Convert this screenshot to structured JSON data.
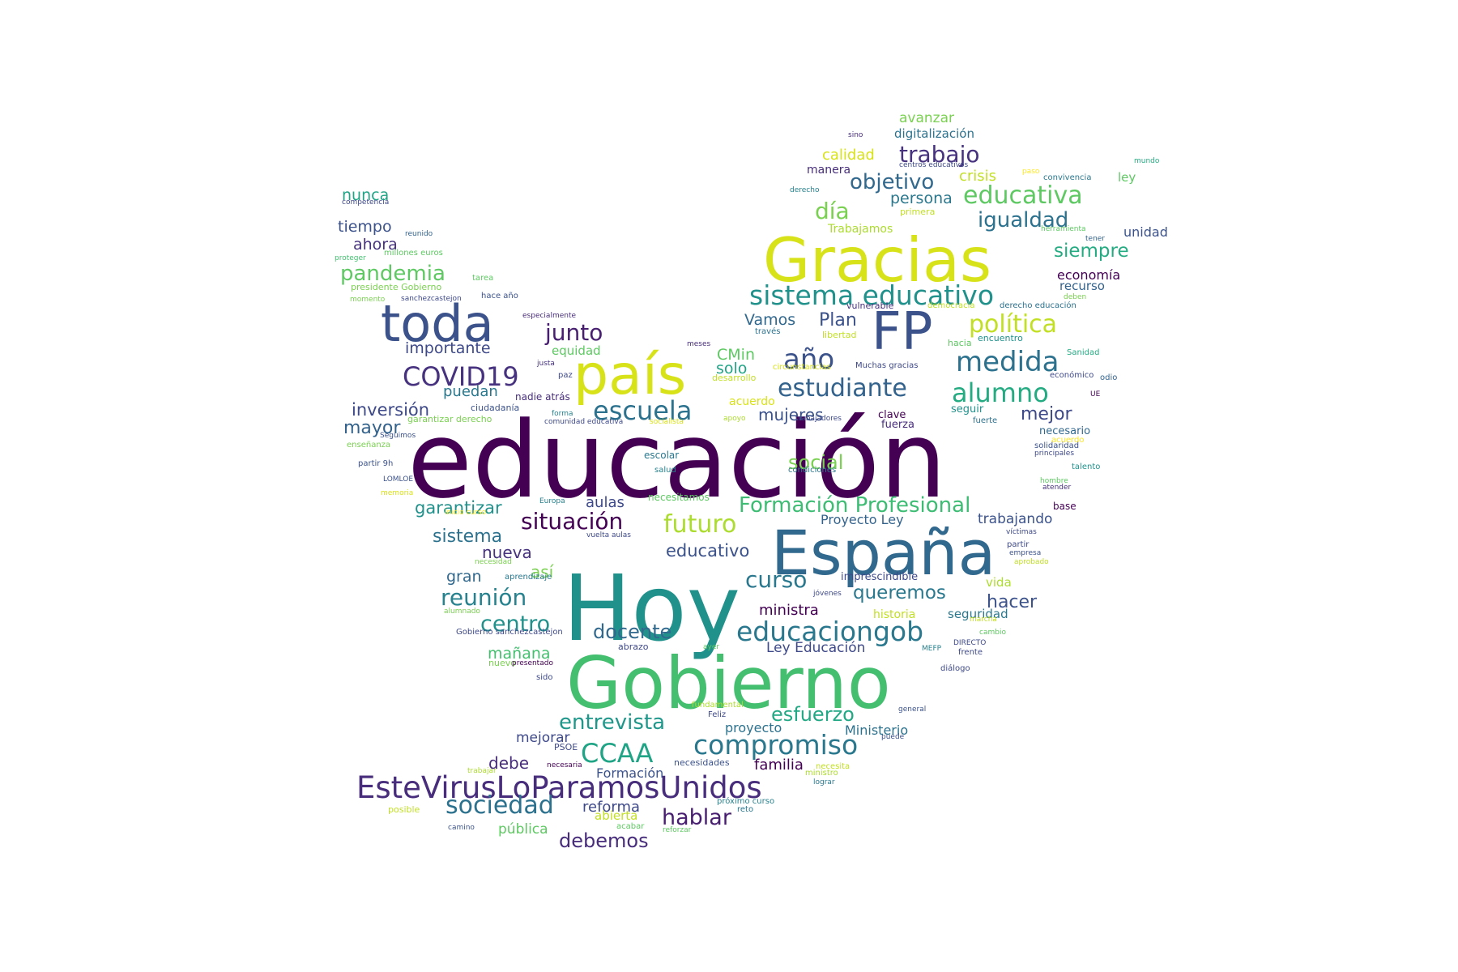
{
  "words": [
    {
      "text": "educación",
      "color": "#440154"
    },
    {
      "text": "Hoy",
      "color": "#21918c"
    },
    {
      "text": "Gobierno",
      "color": "#44bf70"
    },
    {
      "text": "España",
      "color": "#31688e"
    },
    {
      "text": "Gracias",
      "color": "#d8e219"
    },
    {
      "text": "país",
      "color": "#d8e219"
    },
    {
      "text": "FP",
      "color": "#3b528b"
    },
    {
      "text": "toda",
      "color": "#3b528b"
    },
    {
      "text": "EsteVirusLoParamosUnidos",
      "color": "#472d7b"
    },
    {
      "text": "sistema educativo",
      "color": "#21918c"
    },
    {
      "text": "compromiso",
      "color": "#2a788e"
    },
    {
      "text": "educaciongob",
      "color": "#2a788e"
    },
    {
      "text": "COVID19",
      "color": "#46327e"
    },
    {
      "text": "escuela",
      "color": "#2c728e"
    },
    {
      "text": "medida",
      "color": "#2c728e"
    },
    {
      "text": "alumno",
      "color": "#25ab82"
    },
    {
      "text": "estudiante",
      "color": "#33638d"
    },
    {
      "text": "año",
      "color": "#3b528b"
    },
    {
      "text": "política",
      "color": "#c2df23"
    },
    {
      "text": "educativa",
      "color": "#5ec962"
    },
    {
      "text": "futuro",
      "color": "#addc30"
    },
    {
      "text": "CCAA",
      "color": "#20a486"
    },
    {
      "text": "sociedad",
      "color": "#2c728e"
    },
    {
      "text": "Formación Profesional",
      "color": "#3dbc74"
    },
    {
      "text": "situación",
      "color": "#440154"
    },
    {
      "text": "reunión",
      "color": "#26828e"
    },
    {
      "text": "curso",
      "color": "#2a788e"
    },
    {
      "text": "junto",
      "color": "#481f70"
    },
    {
      "text": "trabajo",
      "color": "#46327e"
    },
    {
      "text": "igualdad",
      "color": "#2c728e"
    },
    {
      "text": "día",
      "color": "#7ad151"
    },
    {
      "text": "objetivo",
      "color": "#31688e"
    },
    {
      "text": "entrevista",
      "color": "#1f988b"
    },
    {
      "text": "esfuerzo",
      "color": "#22a884"
    },
    {
      "text": "hablar",
      "color": "#481f70"
    },
    {
      "text": "debemos",
      "color": "#472d7b"
    },
    {
      "text": "centro",
      "color": "#21918c"
    },
    {
      "text": "docente",
      "color": "#31688e"
    },
    {
      "text": "pandemia",
      "color": "#5ec962"
    },
    {
      "text": "siempre",
      "color": "#25ab82"
    },
    {
      "text": "queremos",
      "color": "#2a788e"
    },
    {
      "text": "hacer",
      "color": "#3b528b"
    },
    {
      "text": "inversión",
      "color": "#3e4989"
    },
    {
      "text": "mejor",
      "color": "#3e4989"
    },
    {
      "text": "social",
      "color": "#7ad151"
    },
    {
      "text": "importante",
      "color": "#3e4989"
    },
    {
      "text": "mujeres",
      "color": "#3b528b"
    },
    {
      "text": "Plan",
      "color": "#3b528b"
    },
    {
      "text": "Vamos",
      "color": "#31688e"
    },
    {
      "text": "CMin",
      "color": "#5ec962"
    },
    {
      "text": "mayor",
      "color": "#33638d"
    },
    {
      "text": "sistema",
      "color": "#2c728e"
    },
    {
      "text": "nueva",
      "color": "#46327e"
    },
    {
      "text": "garantizar",
      "color": "#21918c"
    },
    {
      "text": "educativo",
      "color": "#3b528b"
    },
    {
      "text": "ahora",
      "color": "#46327e"
    },
    {
      "text": "tiempo",
      "color": "#3b528b"
    },
    {
      "text": "nunca",
      "color": "#20a486"
    },
    {
      "text": "persona",
      "color": "#2a788e"
    },
    {
      "text": "crisis",
      "color": "#c2df23"
    },
    {
      "text": "calidad",
      "color": "#d8e219"
    },
    {
      "text": "avanzar",
      "color": "#7ad151"
    },
    {
      "text": "digitalización",
      "color": "#2c728e"
    },
    {
      "text": "unidad",
      "color": "#3b528b"
    },
    {
      "text": "economía",
      "color": "#440154"
    },
    {
      "text": "recurso",
      "color": "#33638d"
    },
    {
      "text": "manera",
      "color": "#472d7b"
    },
    {
      "text": "Trabajamos",
      "color": "#addc30"
    },
    {
      "text": "solo",
      "color": "#20a486"
    },
    {
      "text": "puedan",
      "color": "#2a788e"
    },
    {
      "text": "equidad",
      "color": "#5ec962"
    },
    {
      "text": "así",
      "color": "#7ad151"
    },
    {
      "text": "gran",
      "color": "#31688e"
    },
    {
      "text": "aulas",
      "color": "#3e4989"
    },
    {
      "text": "ministra",
      "color": "#440154"
    },
    {
      "text": "mañana",
      "color": "#44bf70"
    },
    {
      "text": "Ley Educación",
      "color": "#3e4989"
    },
    {
      "text": "debe",
      "color": "#472d7b"
    },
    {
      "text": "mejorar",
      "color": "#3e4989"
    },
    {
      "text": "familia",
      "color": "#440154"
    },
    {
      "text": "reforma",
      "color": "#3e4989"
    },
    {
      "text": "Formación",
      "color": "#3b528b"
    },
    {
      "text": "pública",
      "color": "#5ec962"
    },
    {
      "text": "abierta",
      "color": "#c2df23"
    },
    {
      "text": "proyecto",
      "color": "#2c728e"
    },
    {
      "text": "Ministerio",
      "color": "#2c728e"
    },
    {
      "text": "trabajando",
      "color": "#3b528b"
    },
    {
      "text": "Proyecto Ley",
      "color": "#33638d"
    },
    {
      "text": "vida",
      "color": "#addc30"
    },
    {
      "text": "seguridad",
      "color": "#2a788e"
    },
    {
      "text": "historia",
      "color": "#c2df23"
    },
    {
      "text": "acuerdo",
      "color": "#d8e219"
    },
    {
      "text": "clave",
      "color": "#440154"
    },
    {
      "text": "fuerza",
      "color": "#472d7b"
    },
    {
      "text": "seguir",
      "color": "#21918c"
    },
    {
      "text": "necesario",
      "color": "#31688e"
    },
    {
      "text": "base",
      "color": "#440154"
    },
    {
      "text": "imprescindible",
      "color": "#3e4989"
    },
    {
      "text": "necesitamos",
      "color": "#5ec962"
    },
    {
      "text": "escolar",
      "color": "#2a788e"
    },
    {
      "text": "nadie atrás",
      "color": "#472d7b"
    },
    {
      "text": "ley",
      "color": "#5ec962"
    },
    {
      "text": "mundo",
      "color": "#25ab82"
    },
    {
      "text": "paso",
      "color": "#fde725"
    },
    {
      "text": "convivencia",
      "color": "#2a788e"
    },
    {
      "text": "sino",
      "color": "#472d7b"
    },
    {
      "text": "centros educativos",
      "color": "#3e4989"
    },
    {
      "text": "derecho",
      "color": "#26828e"
    },
    {
      "text": "primera",
      "color": "#c2df23"
    },
    {
      "text": "herramienta",
      "color": "#5ec962"
    },
    {
      "text": "tener",
      "color": "#33638d"
    },
    {
      "text": "competencia",
      "color": "#3e4989"
    },
    {
      "text": "reunido",
      "color": "#33638d"
    },
    {
      "text": "millones euros",
      "color": "#5ec962"
    },
    {
      "text": "proteger",
      "color": "#44bf70"
    },
    {
      "text": "tarea",
      "color": "#5ec962"
    },
    {
      "text": "presidente Gobierno",
      "color": "#7ad151"
    },
    {
      "text": "hace año",
      "color": "#3b528b"
    },
    {
      "text": "sanchezcastejon",
      "color": "#3e4989"
    },
    {
      "text": "momento",
      "color": "#7ad151"
    },
    {
      "text": "especialmente",
      "color": "#472d7b"
    },
    {
      "text": "vulnerable",
      "color": "#46327e"
    },
    {
      "text": "democracia",
      "color": "#c2df23"
    },
    {
      "text": "derecho educación",
      "color": "#2c728e"
    },
    {
      "text": "deben",
      "color": "#7ad151"
    },
    {
      "text": "través",
      "color": "#2c728e"
    },
    {
      "text": "libertad",
      "color": "#c2df23"
    },
    {
      "text": "meses",
      "color": "#472d7b"
    },
    {
      "text": "hacia",
      "color": "#5ec962"
    },
    {
      "text": "encuentro",
      "color": "#21918c"
    },
    {
      "text": "justa",
      "color": "#46327e"
    },
    {
      "text": "circunstancias",
      "color": "#d8e219"
    },
    {
      "text": "Muchas gracias",
      "color": "#3e4989"
    },
    {
      "text": "Sanidad",
      "color": "#25ab82"
    },
    {
      "text": "paz",
      "color": "#3e4989"
    },
    {
      "text": "desarrollo",
      "color": "#c2df23"
    },
    {
      "text": "económico",
      "color": "#3e4989"
    },
    {
      "text": "odio",
      "color": "#33638d"
    },
    {
      "text": "UE",
      "color": "#440154"
    },
    {
      "text": "ciudadanía",
      "color": "#3b528b"
    },
    {
      "text": "forma",
      "color": "#26828e"
    },
    {
      "text": "trabajadores",
      "color": "#3e4989"
    },
    {
      "text": "fuerte",
      "color": "#2c728e"
    },
    {
      "text": "garantizar derecho",
      "color": "#7ad151"
    },
    {
      "text": "comunidad educativa",
      "color": "#3e4989"
    },
    {
      "text": "socialista",
      "color": "#d8e219"
    },
    {
      "text": "apoyo",
      "color": "#addc30"
    },
    {
      "text": "acuerdo ",
      "color": "#fde725"
    },
    {
      "text": "Seguimos",
      "color": "#3b528b"
    },
    {
      "text": "enseñanza",
      "color": "#7ad151"
    },
    {
      "text": "solidaridad",
      "color": "#3b528b"
    },
    {
      "text": "principales",
      "color": "#3e4989"
    },
    {
      "text": "partir 9h",
      "color": "#3b528b"
    },
    {
      "text": "salud",
      "color": "#26828e"
    },
    {
      "text": "condiciones",
      "color": "#2a788e"
    },
    {
      "text": "talento",
      "color": "#21918c"
    },
    {
      "text": "LOMLOE",
      "color": "#3b528b"
    },
    {
      "text": "hombre",
      "color": "#5ec962"
    },
    {
      "text": "atender",
      "color": "#46327e"
    },
    {
      "text": "memoria",
      "color": "#d8e219"
    },
    {
      "text": "Europa",
      "color": "#26828e"
    },
    {
      "text": "inicio curso",
      "color": "#fde725"
    },
    {
      "text": "víctimas",
      "color": "#3e4989"
    },
    {
      "text": "vuelta aulas",
      "color": "#3e4989"
    },
    {
      "text": "partir",
      "color": "#3e4989"
    },
    {
      "text": "empresa",
      "color": "#3b528b"
    },
    {
      "text": "necesidad",
      "color": "#7ad151"
    },
    {
      "text": "aprobado",
      "color": "#c2df23"
    },
    {
      "text": "aprendizaje",
      "color": "#2a788e"
    },
    {
      "text": "jóvenes",
      "color": "#3e4989"
    },
    {
      "text": "alumnado",
      "color": "#7ad151"
    },
    {
      "text": "marcha",
      "color": "#c2df23"
    },
    {
      "text": "Gobierno sanchezcastejon",
      "color": "#3e4989"
    },
    {
      "text": "cambio",
      "color": "#5ec962"
    },
    {
      "text": "abrazo",
      "color": "#3e4989"
    },
    {
      "text": "ayer",
      "color": "#5ec962"
    },
    {
      "text": "MEFP",
      "color": "#26828e"
    },
    {
      "text": "DIRECTO",
      "color": "#3e4989"
    },
    {
      "text": "frente",
      "color": "#3e4989"
    },
    {
      "text": "nuevo",
      "color": "#7ad151"
    },
    {
      "text": "presentado",
      "color": "#440154"
    },
    {
      "text": "diálogo",
      "color": "#3e4989"
    },
    {
      "text": "sido",
      "color": "#3e4989"
    },
    {
      "text": "fundamental",
      "color": "#addc30"
    },
    {
      "text": "general",
      "color": "#3b528b"
    },
    {
      "text": "Feliz",
      "color": "#3e4989"
    },
    {
      "text": "puede",
      "color": "#3b528b"
    },
    {
      "text": "PSOE",
      "color": "#3e4989"
    },
    {
      "text": "necesaria",
      "color": "#440154"
    },
    {
      "text": "necesidades",
      "color": "#3b528b"
    },
    {
      "text": "necesita",
      "color": "#c2df23"
    },
    {
      "text": "ministro",
      "color": "#addc30"
    },
    {
      "text": "trabajar",
      "color": "#addc30"
    },
    {
      "text": "lograr",
      "color": "#2a788e"
    },
    {
      "text": "próximo curso",
      "color": "#26828e"
    },
    {
      "text": "reto",
      "color": "#2a788e"
    },
    {
      "text": "posible",
      "color": "#c2df23"
    },
    {
      "text": "acabar",
      "color": "#5ec962"
    },
    {
      "text": "reforzar",
      "color": "#5ec962"
    },
    {
      "text": "camino",
      "color": "#3b528b"
    }
  ]
}
